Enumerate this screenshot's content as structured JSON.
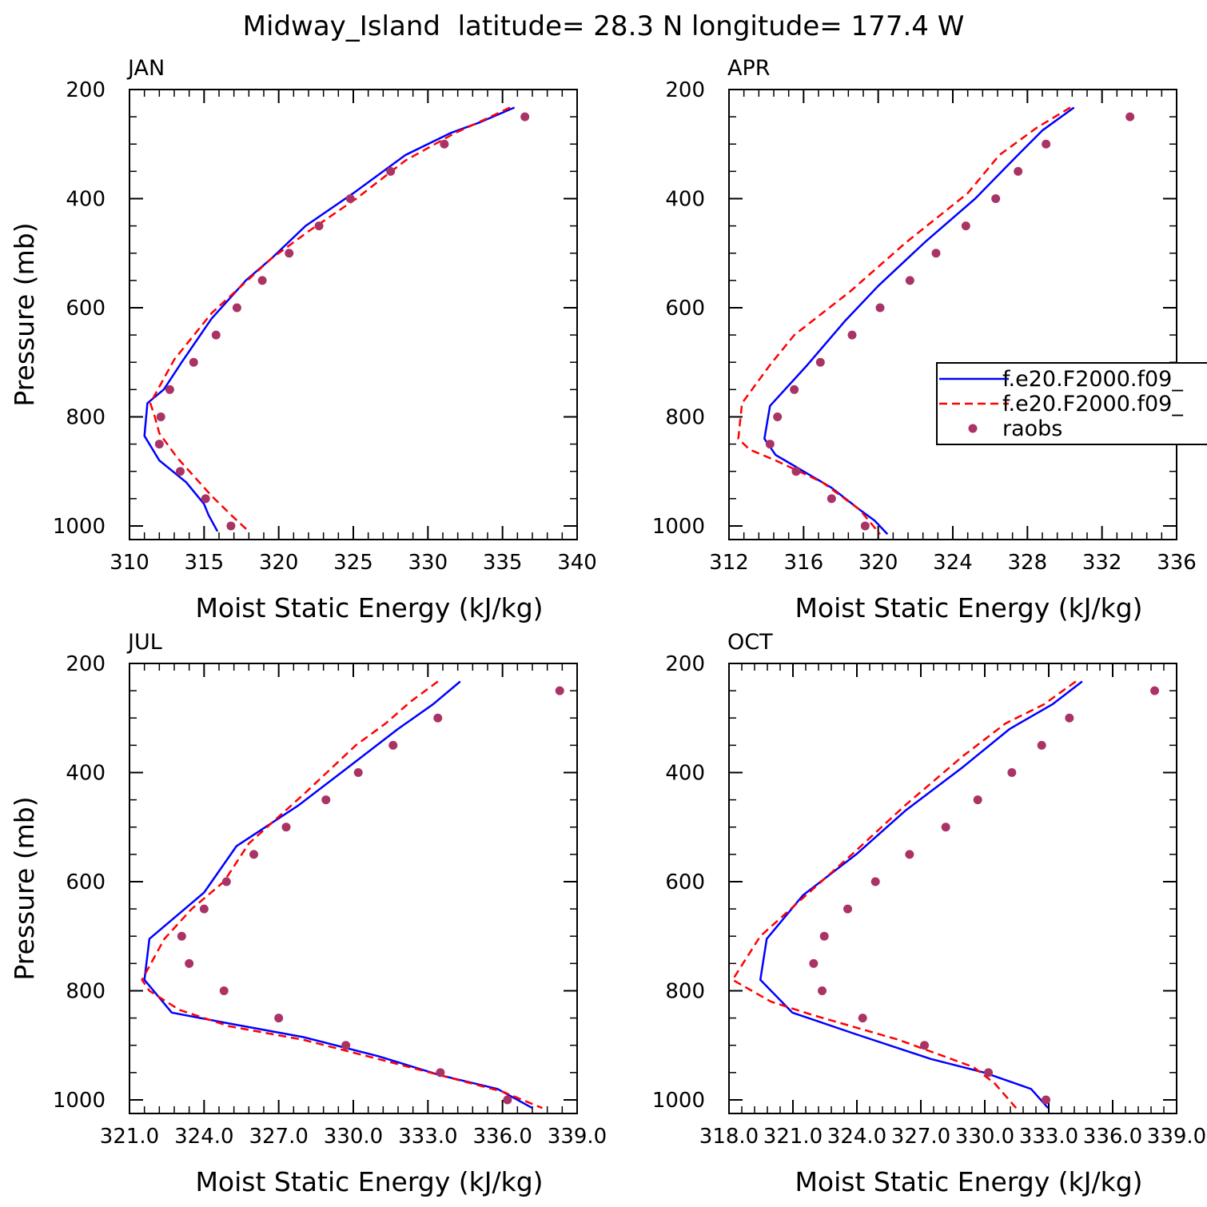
{
  "title": "Midway_Island  latitude= 28.3 N longitude= 177.4 W",
  "colors": {
    "model1": "#0000ff",
    "model2": "#ff0000",
    "raobs": "#aa3366",
    "axis": "#000000"
  },
  "legend": {
    "entries": [
      {
        "label": "f.e20.F2000.f09_",
        "style": "solid",
        "color": "#0000ff"
      },
      {
        "label": "f.e20.F2000.f09_",
        "style": "dashed",
        "color": "#ff0000"
      },
      {
        "label": "raobs",
        "style": "dot",
        "color": "#aa3366"
      }
    ]
  },
  "chart_data": [
    {
      "type": "line",
      "title": "JAN",
      "xlabel": "Moist Static Energy (kJ/kg)",
      "ylabel": "Pressure (mb)",
      "xlim": [
        310,
        340
      ],
      "ylim": [
        200,
        1025
      ],
      "xticks": [
        310,
        315,
        320,
        325,
        330,
        335,
        340
      ],
      "xtick_labels": [
        "310",
        "315",
        "320",
        "325",
        "330",
        "335",
        "340"
      ],
      "yticks": [
        200,
        400,
        600,
        800,
        1000
      ],
      "ytick_labels": [
        "200",
        "400",
        "600",
        "800",
        "1000"
      ],
      "series": [
        {
          "name": "f.e20.F2000.f09_",
          "style": "solid",
          "color": "#0000ff",
          "x": [
            335.8,
            333.5,
            331.5,
            328.5,
            325.0,
            321.8,
            319.5,
            317.8,
            315.5,
            313.5,
            312.3,
            311.2,
            311.0,
            312.0,
            313.8,
            315.0,
            315.3,
            315.9
          ],
          "y": [
            233,
            260,
            280,
            320,
            390,
            450,
            510,
            550,
            620,
            700,
            750,
            775,
            835,
            880,
            920,
            960,
            980,
            1010
          ]
        },
        {
          "name": "f.e20.F2000.f09_",
          "style": "dashed",
          "color": "#ff0000",
          "x": [
            335.5,
            333.8,
            331.8,
            328.5,
            325.2,
            322.0,
            319.5,
            317.5,
            315.5,
            313.0,
            312.0,
            311.4,
            311.7,
            312.0,
            313.2,
            315.5,
            317.0,
            318.0
          ],
          "y": [
            233,
            255,
            280,
            330,
            400,
            460,
            510,
            560,
            610,
            695,
            745,
            775,
            800,
            830,
            875,
            945,
            985,
            1010
          ]
        },
        {
          "name": "raobs",
          "style": "dot",
          "color": "#aa3366",
          "x": [
            336.5,
            331.1,
            327.5,
            324.8,
            322.7,
            320.7,
            318.9,
            317.2,
            315.8,
            314.3,
            312.7,
            312.1,
            312.0,
            313.4,
            315.1,
            316.8
          ],
          "y": [
            250,
            300,
            350,
            400,
            450,
            500,
            550,
            600,
            650,
            700,
            750,
            800,
            850,
            900,
            950,
            1000
          ]
        }
      ]
    },
    {
      "type": "line",
      "title": "APR",
      "xlabel": "Moist Static Energy (kJ/kg)",
      "ylabel": "",
      "xlim": [
        312,
        336
      ],
      "ylim": [
        200,
        1025
      ],
      "xticks": [
        312,
        316,
        320,
        324,
        328,
        332,
        336
      ],
      "xtick_labels": [
        "312",
        "316",
        "320",
        "324",
        "328",
        "332",
        "336"
      ],
      "yticks": [
        200,
        400,
        600,
        800,
        1000
      ],
      "ytick_labels": [
        "200",
        "400",
        "600",
        "800",
        "1000"
      ],
      "series": [
        {
          "name": "f.e20.F2000.f09_",
          "style": "solid",
          "color": "#0000ff",
          "x": [
            330.5,
            328.8,
            327.2,
            325.2,
            322.5,
            320.0,
            318.2,
            316.2,
            314.2,
            313.9,
            314.5,
            315.0,
            317.5,
            319.0,
            319.8,
            320.5
          ],
          "y": [
            233,
            275,
            330,
            400,
            480,
            560,
            625,
            705,
            780,
            840,
            870,
            880,
            930,
            970,
            990,
            1015
          ]
        },
        {
          "name": "f.e20.F2000.f09_",
          "style": "dashed",
          "color": "#ff0000",
          "x": [
            330.3,
            328.5,
            326.5,
            324.8,
            321.5,
            318.5,
            315.5,
            314.2,
            312.7,
            312.5,
            313.1,
            314.5,
            317.0,
            319.0,
            320.1
          ],
          "y": [
            233,
            270,
            320,
            390,
            480,
            570,
            650,
            705,
            775,
            840,
            860,
            880,
            920,
            970,
            1015
          ]
        },
        {
          "name": "raobs",
          "style": "dot",
          "color": "#aa3366",
          "x": [
            333.5,
            329.0,
            327.5,
            326.3,
            324.7,
            323.1,
            321.7,
            320.1,
            318.6,
            316.9,
            315.5,
            314.6,
            314.2,
            315.6,
            317.5,
            319.3
          ],
          "y": [
            250,
            300,
            350,
            400,
            450,
            500,
            550,
            600,
            650,
            700,
            750,
            800,
            850,
            900,
            950,
            1000
          ]
        }
      ]
    },
    {
      "type": "line",
      "title": "JUL",
      "xlabel": "Moist Static Energy (kJ/kg)",
      "ylabel": "Pressure (mb)",
      "xlim": [
        321.0,
        339.0
      ],
      "ylim": [
        200,
        1025
      ],
      "xticks": [
        321,
        324,
        327,
        330,
        333,
        336,
        339
      ],
      "xtick_labels": [
        "321.0",
        "324.0",
        "327.0",
        "330.0",
        "333.0",
        "336.0",
        "339.0"
      ],
      "yticks": [
        200,
        400,
        600,
        800,
        1000
      ],
      "ytick_labels": [
        "200",
        "400",
        "600",
        "800",
        "1000"
      ],
      "series": [
        {
          "name": "f.e20.F2000.f09_",
          "style": "solid",
          "color": "#0000ff",
          "x": [
            334.3,
            333.2,
            331.8,
            329.8,
            327.8,
            325.3,
            324.0,
            321.8,
            321.6,
            322.7,
            325.0,
            328.0,
            331.0,
            333.5,
            335.8,
            337.2
          ],
          "y": [
            233,
            275,
            320,
            390,
            460,
            535,
            620,
            705,
            780,
            840,
            860,
            885,
            920,
            955,
            980,
            1015
          ]
        },
        {
          "name": "f.e20.F2000.f09_",
          "style": "dashed",
          "color": "#ff0000",
          "x": [
            333.4,
            332.3,
            331.3,
            330.1,
            328.0,
            325.8,
            324.8,
            323.5,
            322.4,
            321.5,
            321.8,
            323.0,
            325.0,
            328.0,
            331.0,
            333.5,
            336.0,
            337.6
          ],
          "y": [
            233,
            270,
            310,
            350,
            440,
            530,
            600,
            650,
            705,
            780,
            800,
            835,
            865,
            890,
            925,
            955,
            985,
            1015
          ]
        },
        {
          "name": "raobs",
          "style": "dot",
          "color": "#aa3366",
          "x": [
            338.3,
            333.4,
            331.6,
            330.2,
            328.9,
            327.3,
            326.0,
            324.9,
            324.0,
            323.1,
            323.4,
            324.8,
            327.0,
            329.7,
            333.5,
            336.2
          ],
          "y": [
            250,
            300,
            350,
            400,
            450,
            500,
            550,
            600,
            650,
            700,
            750,
            800,
            850,
            900,
            950,
            1000
          ]
        }
      ]
    },
    {
      "type": "line",
      "title": "OCT",
      "xlabel": "Moist Static Energy (kJ/kg)",
      "ylabel": "",
      "xlim": [
        318.03,
        339.03
      ],
      "ylim": [
        200,
        1025
      ],
      "xticks": [
        318.03,
        321.03,
        324.03,
        327.03,
        330.03,
        333.03,
        336.03,
        339.03
      ],
      "xtick_labels": [
        "318.0",
        "321.0",
        "324.0",
        "327.0",
        "330.0",
        "333.0",
        "336.0",
        "339.0"
      ],
      "yticks": [
        200,
        400,
        600,
        800,
        1000
      ],
      "ytick_labels": [
        "200",
        "400",
        "600",
        "800",
        "1000"
      ],
      "series": [
        {
          "name": "f.e20.F2000.f09_",
          "style": "solid",
          "color": "#0000ff",
          "x": [
            334.6,
            333.2,
            331.2,
            329.0,
            326.3,
            324.0,
            321.5,
            319.8,
            319.5,
            321.0,
            324.0,
            327.5,
            330.0,
            332.2,
            333.0
          ],
          "y": [
            233,
            275,
            320,
            390,
            470,
            550,
            625,
            705,
            780,
            840,
            880,
            925,
            950,
            980,
            1015
          ]
        },
        {
          "name": "f.e20.F2000.f09_",
          "style": "dashed",
          "color": "#ff0000",
          "x": [
            334.3,
            332.8,
            331.0,
            329.0,
            326.3,
            323.8,
            321.5,
            319.5,
            318.2,
            320.0,
            322.0,
            326.0,
            329.5,
            330.5,
            331.5
          ],
          "y": [
            233,
            275,
            310,
            370,
            460,
            550,
            630,
            700,
            780,
            820,
            845,
            890,
            940,
            970,
            1015
          ]
        },
        {
          "name": "raobs",
          "style": "dot",
          "color": "#aa3366",
          "x": [
            338.0,
            334.0,
            332.7,
            331.3,
            329.7,
            328.2,
            326.5,
            324.9,
            323.6,
            322.5,
            322.0,
            322.4,
            324.3,
            327.2,
            330.2,
            332.9
          ],
          "y": [
            250,
            300,
            350,
            400,
            450,
            500,
            550,
            600,
            650,
            700,
            750,
            800,
            850,
            900,
            950,
            1000
          ]
        }
      ]
    }
  ]
}
